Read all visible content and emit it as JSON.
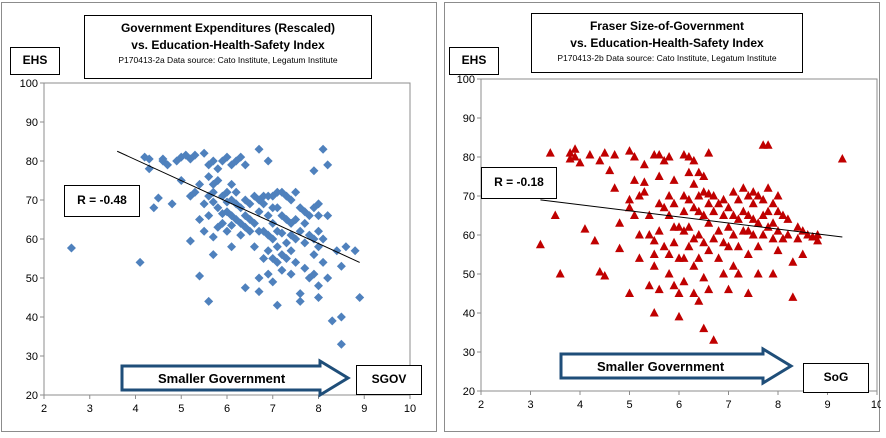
{
  "colors": {
    "left_marker": "#4f81bd",
    "right_marker": "#c00000",
    "arrow_fill": "#ffffff",
    "arrow_stroke": "#1f4e79"
  },
  "chart_data": [
    {
      "type": "scatter",
      "marker": "diamond",
      "title_line1": "Government Expenditures (Rescaled)",
      "title_line2": "vs. Education-Health-Safety Index",
      "source": "P170413-2a Data source: Cato Institute,  Legatum Institute",
      "ylabel": "EHS",
      "xlabel": "SGOV",
      "r_label": "R = -0.48",
      "arrow_label": "Smaller Government",
      "xlim": [
        2,
        10
      ],
      "ylim": [
        20,
        100
      ],
      "xticks": [
        "2",
        "3",
        "4",
        "5",
        "6",
        "7",
        "8",
        "9",
        "10"
      ],
      "yticks": [
        "20",
        "30",
        "40",
        "50",
        "60",
        "70",
        "80",
        "90",
        "100"
      ],
      "trendline": {
        "x": [
          3.6,
          8.9
        ],
        "y": [
          82.5,
          54
        ]
      },
      "points": [
        [
          2.6,
          57.7
        ],
        [
          4.1,
          54
        ],
        [
          4.2,
          81
        ],
        [
          4.3,
          80.5
        ],
        [
          4.3,
          78
        ],
        [
          4.4,
          68
        ],
        [
          4.5,
          70.5
        ],
        [
          4.6,
          80
        ],
        [
          4.6,
          80.5
        ],
        [
          4.7,
          79
        ],
        [
          4.8,
          69
        ],
        [
          4.9,
          80
        ],
        [
          5.0,
          75
        ],
        [
          5.0,
          81
        ],
        [
          5.1,
          81.5
        ],
        [
          5.2,
          80.5
        ],
        [
          5.2,
          71
        ],
        [
          5.2,
          59.5
        ],
        [
          5.3,
          81.5
        ],
        [
          5.3,
          72
        ],
        [
          5.4,
          74
        ],
        [
          5.4,
          65
        ],
        [
          5.4,
          50.5
        ],
        [
          5.5,
          82
        ],
        [
          5.5,
          69
        ],
        [
          5.5,
          62
        ],
        [
          5.6,
          79
        ],
        [
          5.6,
          76
        ],
        [
          5.6,
          71
        ],
        [
          5.6,
          66
        ],
        [
          5.6,
          44
        ],
        [
          5.7,
          80
        ],
        [
          5.7,
          74
        ],
        [
          5.7,
          72
        ],
        [
          5.7,
          69.5
        ],
        [
          5.7,
          60.5
        ],
        [
          5.7,
          56
        ],
        [
          5.8,
          78
        ],
        [
          5.8,
          75
        ],
        [
          5.8,
          68
        ],
        [
          5.8,
          63
        ],
        [
          5.9,
          80
        ],
        [
          5.9,
          71
        ],
        [
          5.9,
          66.5
        ],
        [
          5.9,
          64
        ],
        [
          6.0,
          81
        ],
        [
          6.0,
          72
        ],
        [
          6.0,
          69.5
        ],
        [
          6.0,
          67
        ],
        [
          6.0,
          62
        ],
        [
          6.1,
          79
        ],
        [
          6.1,
          74
        ],
        [
          6.1,
          70
        ],
        [
          6.1,
          66
        ],
        [
          6.1,
          63.5
        ],
        [
          6.1,
          58
        ],
        [
          6.2,
          80
        ],
        [
          6.2,
          72
        ],
        [
          6.2,
          69
        ],
        [
          6.2,
          65
        ],
        [
          6.3,
          81
        ],
        [
          6.3,
          68
        ],
        [
          6.3,
          64
        ],
        [
          6.3,
          61
        ],
        [
          6.4,
          79
        ],
        [
          6.4,
          70
        ],
        [
          6.4,
          66
        ],
        [
          6.4,
          63
        ],
        [
          6.4,
          47.5
        ],
        [
          6.5,
          69
        ],
        [
          6.5,
          65
        ],
        [
          6.5,
          62
        ],
        [
          6.6,
          71
        ],
        [
          6.6,
          64
        ],
        [
          6.6,
          58
        ],
        [
          6.7,
          83
        ],
        [
          6.7,
          70
        ],
        [
          6.7,
          67
        ],
        [
          6.7,
          62
        ],
        [
          6.7,
          50
        ],
        [
          6.7,
          46.5
        ],
        [
          6.8,
          71
        ],
        [
          6.8,
          69
        ],
        [
          6.8,
          62
        ],
        [
          6.8,
          55
        ],
        [
          6.9,
          80
        ],
        [
          6.9,
          71
        ],
        [
          6.9,
          66
        ],
        [
          6.9,
          61
        ],
        [
          6.9,
          57
        ],
        [
          6.9,
          51
        ],
        [
          7.0,
          71
        ],
        [
          7.0,
          68
        ],
        [
          7.0,
          64
        ],
        [
          7.0,
          60
        ],
        [
          7.0,
          55
        ],
        [
          7.0,
          49
        ],
        [
          7.1,
          72
        ],
        [
          7.1,
          68
        ],
        [
          7.1,
          62
        ],
        [
          7.1,
          58
        ],
        [
          7.1,
          54
        ],
        [
          7.1,
          43
        ],
        [
          7.2,
          72
        ],
        [
          7.2,
          66
        ],
        [
          7.2,
          61.5
        ],
        [
          7.2,
          56
        ],
        [
          7.2,
          52
        ],
        [
          7.3,
          71
        ],
        [
          7.3,
          65
        ],
        [
          7.3,
          59
        ],
        [
          7.3,
          55
        ],
        [
          7.4,
          70
        ],
        [
          7.4,
          64
        ],
        [
          7.4,
          61
        ],
        [
          7.4,
          57
        ],
        [
          7.4,
          51
        ],
        [
          7.5,
          72
        ],
        [
          7.5,
          65
        ],
        [
          7.5,
          60
        ],
        [
          7.5,
          54
        ],
        [
          7.6,
          68
        ],
        [
          7.6,
          62
        ],
        [
          7.6,
          46
        ],
        [
          7.6,
          44
        ],
        [
          7.7,
          67
        ],
        [
          7.7,
          64
        ],
        [
          7.7,
          59
        ],
        [
          7.7,
          52.5
        ],
        [
          7.8,
          66
        ],
        [
          7.8,
          61
        ],
        [
          7.8,
          50
        ],
        [
          7.9,
          77.5
        ],
        [
          7.9,
          68
        ],
        [
          7.9,
          60
        ],
        [
          7.9,
          56
        ],
        [
          7.9,
          51
        ],
        [
          8.0,
          69
        ],
        [
          8.0,
          66
        ],
        [
          8.0,
          62
        ],
        [
          8.0,
          58
        ],
        [
          8.0,
          48
        ],
        [
          8.0,
          45
        ],
        [
          8.1,
          83
        ],
        [
          8.1,
          60
        ],
        [
          8.1,
          54
        ],
        [
          8.2,
          79
        ],
        [
          8.2,
          66
        ],
        [
          8.2,
          50
        ],
        [
          8.3,
          39
        ],
        [
          8.4,
          57
        ],
        [
          8.5,
          53
        ],
        [
          8.5,
          40
        ],
        [
          8.6,
          58
        ],
        [
          8.5,
          33
        ],
        [
          8.8,
          57
        ],
        [
          8.9,
          45
        ]
      ]
    },
    {
      "type": "scatter",
      "marker": "triangle",
      "title_line1": "Fraser Size-of-Government",
      "title_line2": "vs. Education-Health-Safety Index",
      "source": "P170413-2b Data source: Cato Institute, Legatum Institute",
      "ylabel": "EHS",
      "xlabel": "SoG",
      "r_label": "R = -0.18",
      "arrow_label": "Smaller Government",
      "xlim": [
        2,
        10
      ],
      "ylim": [
        20,
        100
      ],
      "xticks": [
        "2",
        "3",
        "4",
        "5",
        "6",
        "7",
        "8",
        "9",
        "10"
      ],
      "yticks": [
        "20",
        "30",
        "40",
        "50",
        "60",
        "70",
        "80",
        "90",
        "100"
      ],
      "trendline": {
        "x": [
          3.2,
          9.3
        ],
        "y": [
          69,
          59.5
        ]
      },
      "points": [
        [
          3.2,
          57.5
        ],
        [
          3.4,
          81
        ],
        [
          3.5,
          65
        ],
        [
          3.6,
          50
        ],
        [
          3.8,
          81
        ],
        [
          3.8,
          79.5
        ],
        [
          3.9,
          80
        ],
        [
          3.9,
          82
        ],
        [
          4.0,
          78.5
        ],
        [
          4.1,
          61.5
        ],
        [
          4.2,
          80.5
        ],
        [
          4.3,
          58.5
        ],
        [
          4.4,
          50.5
        ],
        [
          4.4,
          79
        ],
        [
          4.5,
          49.5
        ],
        [
          4.5,
          81
        ],
        [
          4.6,
          76.5
        ],
        [
          4.7,
          72
        ],
        [
          4.7,
          80.5
        ],
        [
          4.8,
          63
        ],
        [
          4.8,
          56.5
        ],
        [
          5.0,
          81.5
        ],
        [
          5.0,
          69
        ],
        [
          5.0,
          67
        ],
        [
          5.0,
          45
        ],
        [
          5.1,
          65
        ],
        [
          5.1,
          80
        ],
        [
          5.1,
          74
        ],
        [
          5.2,
          70
        ],
        [
          5.2,
          60
        ],
        [
          5.2,
          54
        ],
        [
          5.3,
          78
        ],
        [
          5.3,
          73.5
        ],
        [
          5.3,
          71
        ],
        [
          5.4,
          65
        ],
        [
          5.4,
          60
        ],
        [
          5.4,
          47
        ],
        [
          5.5,
          80.5
        ],
        [
          5.5,
          58.5
        ],
        [
          5.5,
          55
        ],
        [
          5.5,
          52
        ],
        [
          5.5,
          40
        ],
        [
          5.6,
          80.5
        ],
        [
          5.6,
          75
        ],
        [
          5.6,
          68
        ],
        [
          5.6,
          61
        ],
        [
          5.6,
          46
        ],
        [
          5.7,
          79
        ],
        [
          5.7,
          67
        ],
        [
          5.7,
          57
        ],
        [
          5.8,
          80
        ],
        [
          5.8,
          70
        ],
        [
          5.8,
          65
        ],
        [
          5.8,
          55
        ],
        [
          5.8,
          50
        ],
        [
          5.9,
          74
        ],
        [
          5.9,
          68
        ],
        [
          5.9,
          62
        ],
        [
          5.9,
          58
        ],
        [
          5.9,
          47
        ],
        [
          6.0,
          62
        ],
        [
          6.0,
          54
        ],
        [
          6.0,
          45
        ],
        [
          6.0,
          39
        ],
        [
          6.1,
          80.5
        ],
        [
          6.1,
          70
        ],
        [
          6.1,
          66
        ],
        [
          6.1,
          61
        ],
        [
          6.1,
          54
        ],
        [
          6.1,
          48
        ],
        [
          6.2,
          80
        ],
        [
          6.2,
          76
        ],
        [
          6.2,
          69
        ],
        [
          6.2,
          62
        ],
        [
          6.2,
          57
        ],
        [
          6.3,
          79
        ],
        [
          6.3,
          73
        ],
        [
          6.3,
          67
        ],
        [
          6.3,
          59
        ],
        [
          6.3,
          52
        ],
        [
          6.3,
          45
        ],
        [
          6.4,
          76
        ],
        [
          6.4,
          70
        ],
        [
          6.4,
          66
        ],
        [
          6.4,
          60
        ],
        [
          6.4,
          54
        ],
        [
          6.4,
          43
        ],
        [
          6.5,
          75
        ],
        [
          6.5,
          71
        ],
        [
          6.5,
          65
        ],
        [
          6.5,
          58
        ],
        [
          6.5,
          49
        ],
        [
          6.5,
          36
        ],
        [
          6.6,
          81
        ],
        [
          6.6,
          70.5
        ],
        [
          6.6,
          68
        ],
        [
          6.6,
          63
        ],
        [
          6.6,
          56
        ],
        [
          6.6,
          46
        ],
        [
          6.7,
          70
        ],
        [
          6.7,
          66
        ],
        [
          6.7,
          59
        ],
        [
          6.7,
          33
        ],
        [
          6.8,
          68
        ],
        [
          6.8,
          61
        ],
        [
          6.8,
          54
        ],
        [
          6.9,
          69
        ],
        [
          6.9,
          65
        ],
        [
          6.9,
          58
        ],
        [
          6.9,
          50
        ],
        [
          7.0,
          67
        ],
        [
          7.0,
          62
        ],
        [
          7.0,
          57
        ],
        [
          7.0,
          46
        ],
        [
          7.1,
          71
        ],
        [
          7.1,
          65
        ],
        [
          7.1,
          60
        ],
        [
          7.1,
          52
        ],
        [
          7.2,
          69
        ],
        [
          7.2,
          64
        ],
        [
          7.2,
          57
        ],
        [
          7.2,
          50
        ],
        [
          7.3,
          72
        ],
        [
          7.3,
          66
        ],
        [
          7.3,
          61
        ],
        [
          7.4,
          70
        ],
        [
          7.4,
          65
        ],
        [
          7.4,
          61
        ],
        [
          7.4,
          55
        ],
        [
          7.4,
          45
        ],
        [
          7.5,
          71
        ],
        [
          7.5,
          68
        ],
        [
          7.5,
          64
        ],
        [
          7.5,
          60
        ],
        [
          7.6,
          70
        ],
        [
          7.6,
          63
        ],
        [
          7.6,
          57
        ],
        [
          7.6,
          50
        ],
        [
          7.7,
          83
        ],
        [
          7.7,
          69
        ],
        [
          7.7,
          65
        ],
        [
          7.7,
          60
        ],
        [
          7.8,
          83
        ],
        [
          7.8,
          72
        ],
        [
          7.8,
          66
        ],
        [
          7.8,
          62
        ],
        [
          7.9,
          68
        ],
        [
          7.9,
          63
        ],
        [
          7.9,
          59
        ],
        [
          7.9,
          50
        ],
        [
          8.0,
          70
        ],
        [
          8.0,
          66
        ],
        [
          8.0,
          61
        ],
        [
          8.0,
          56
        ],
        [
          8.1,
          65
        ],
        [
          8.1,
          59
        ],
        [
          8.2,
          64
        ],
        [
          8.2,
          60
        ],
        [
          8.3,
          44
        ],
        [
          8.3,
          53
        ],
        [
          8.4,
          62
        ],
        [
          8.4,
          59
        ],
        [
          8.5,
          61
        ],
        [
          8.5,
          55
        ],
        [
          8.6,
          60
        ],
        [
          8.7,
          59.5
        ],
        [
          8.8,
          58.5
        ],
        [
          8.8,
          60
        ],
        [
          9.3,
          79.5
        ]
      ]
    }
  ]
}
